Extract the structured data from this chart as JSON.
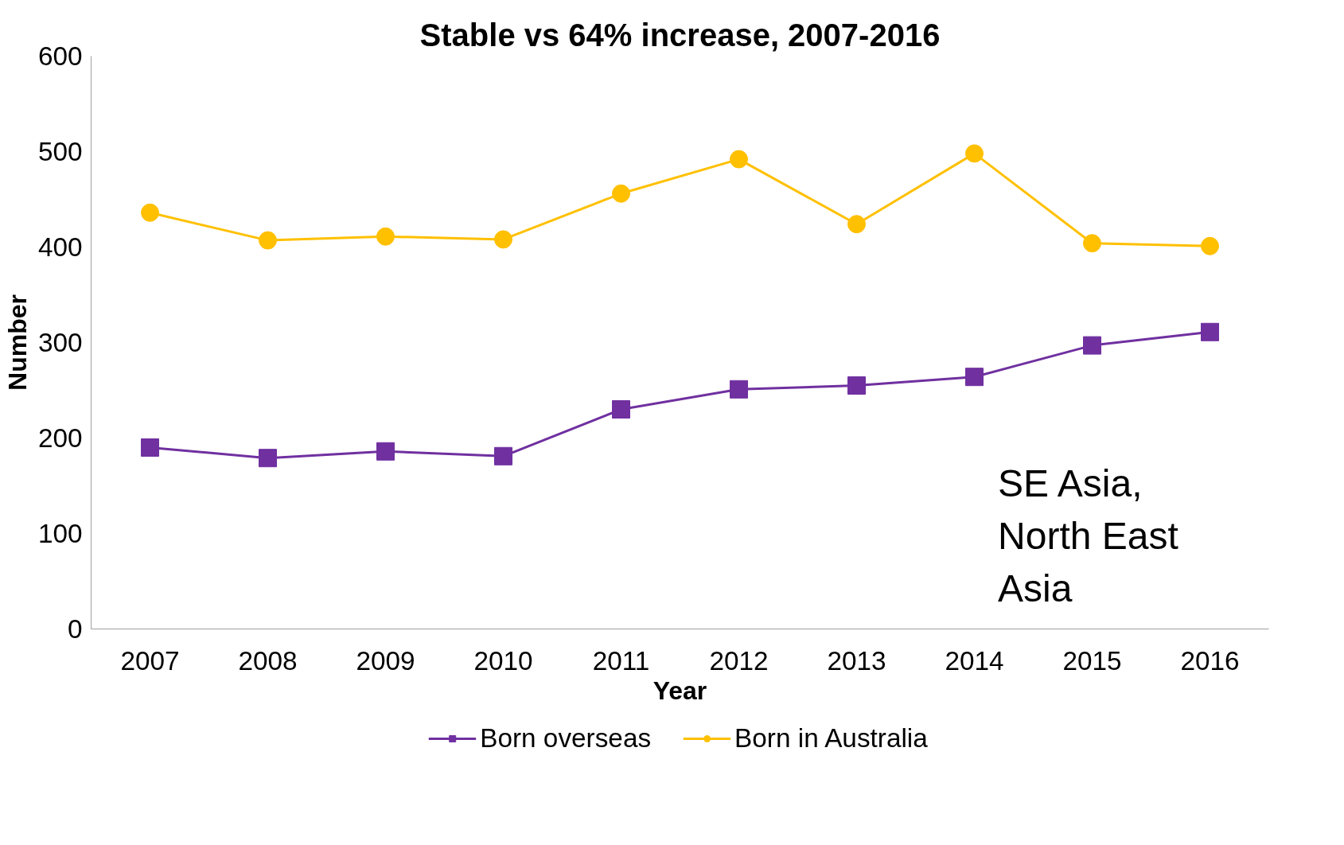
{
  "chart_data": {
    "type": "line",
    "title": "Stable vs 64% increase, 2007-2016",
    "xlabel": "Year",
    "ylabel": "Number",
    "categories": [
      "2007",
      "2008",
      "2009",
      "2010",
      "2011",
      "2012",
      "2013",
      "2014",
      "2015",
      "2016"
    ],
    "series": [
      {
        "name": "Born overseas",
        "color": "#7030a0",
        "marker": "square",
        "values": [
          190,
          179,
          186,
          181,
          230,
          251,
          255,
          264,
          297,
          311
        ]
      },
      {
        "name": "Born in Australia",
        "color": "#ffc000",
        "marker": "circle",
        "values": [
          436,
          407,
          411,
          408,
          456,
          492,
          424,
          498,
          404,
          401
        ]
      }
    ],
    "ylim": [
      0,
      600
    ],
    "yticks": [
      0,
      100,
      200,
      300,
      400,
      500,
      600
    ],
    "grid": false,
    "legend": "bottom",
    "line_style": "solid",
    "annotations": [
      "SE Asia,\nNorth East\nAsia"
    ]
  }
}
